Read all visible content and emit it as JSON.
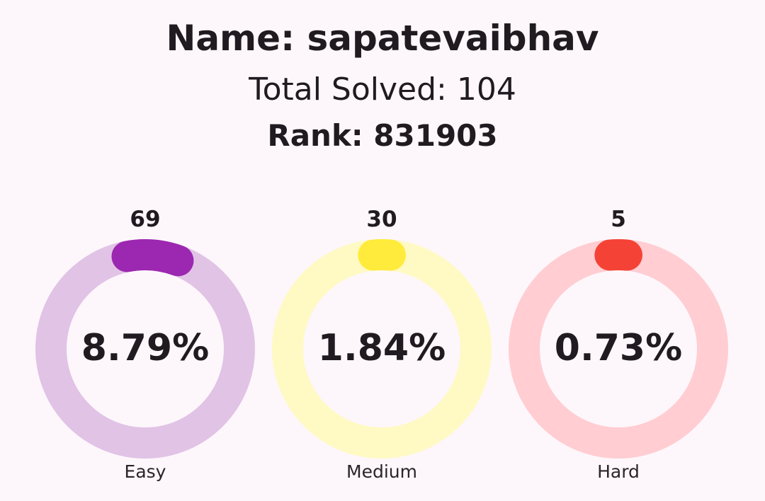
{
  "header": {
    "name": "Name: sapatevaibhav",
    "total": "Total Solved: 104",
    "rank": "Rank: 831903"
  },
  "stats": [
    {
      "label": "Easy",
      "count": "69",
      "percent": "8.79%",
      "fraction": 0.0879,
      "track_color": "#e1c3e6",
      "progress_color": "#9c27b0"
    },
    {
      "label": "Medium",
      "count": "30",
      "percent": "1.84%",
      "fraction": 0.0184,
      "track_color": "#fff9c4",
      "progress_color": "#ffeb3b"
    },
    {
      "label": "Hard",
      "count": "5",
      "percent": "0.73%",
      "fraction": 0.0073,
      "track_color": "#ffcdd2",
      "progress_color": "#f44336"
    }
  ]
}
